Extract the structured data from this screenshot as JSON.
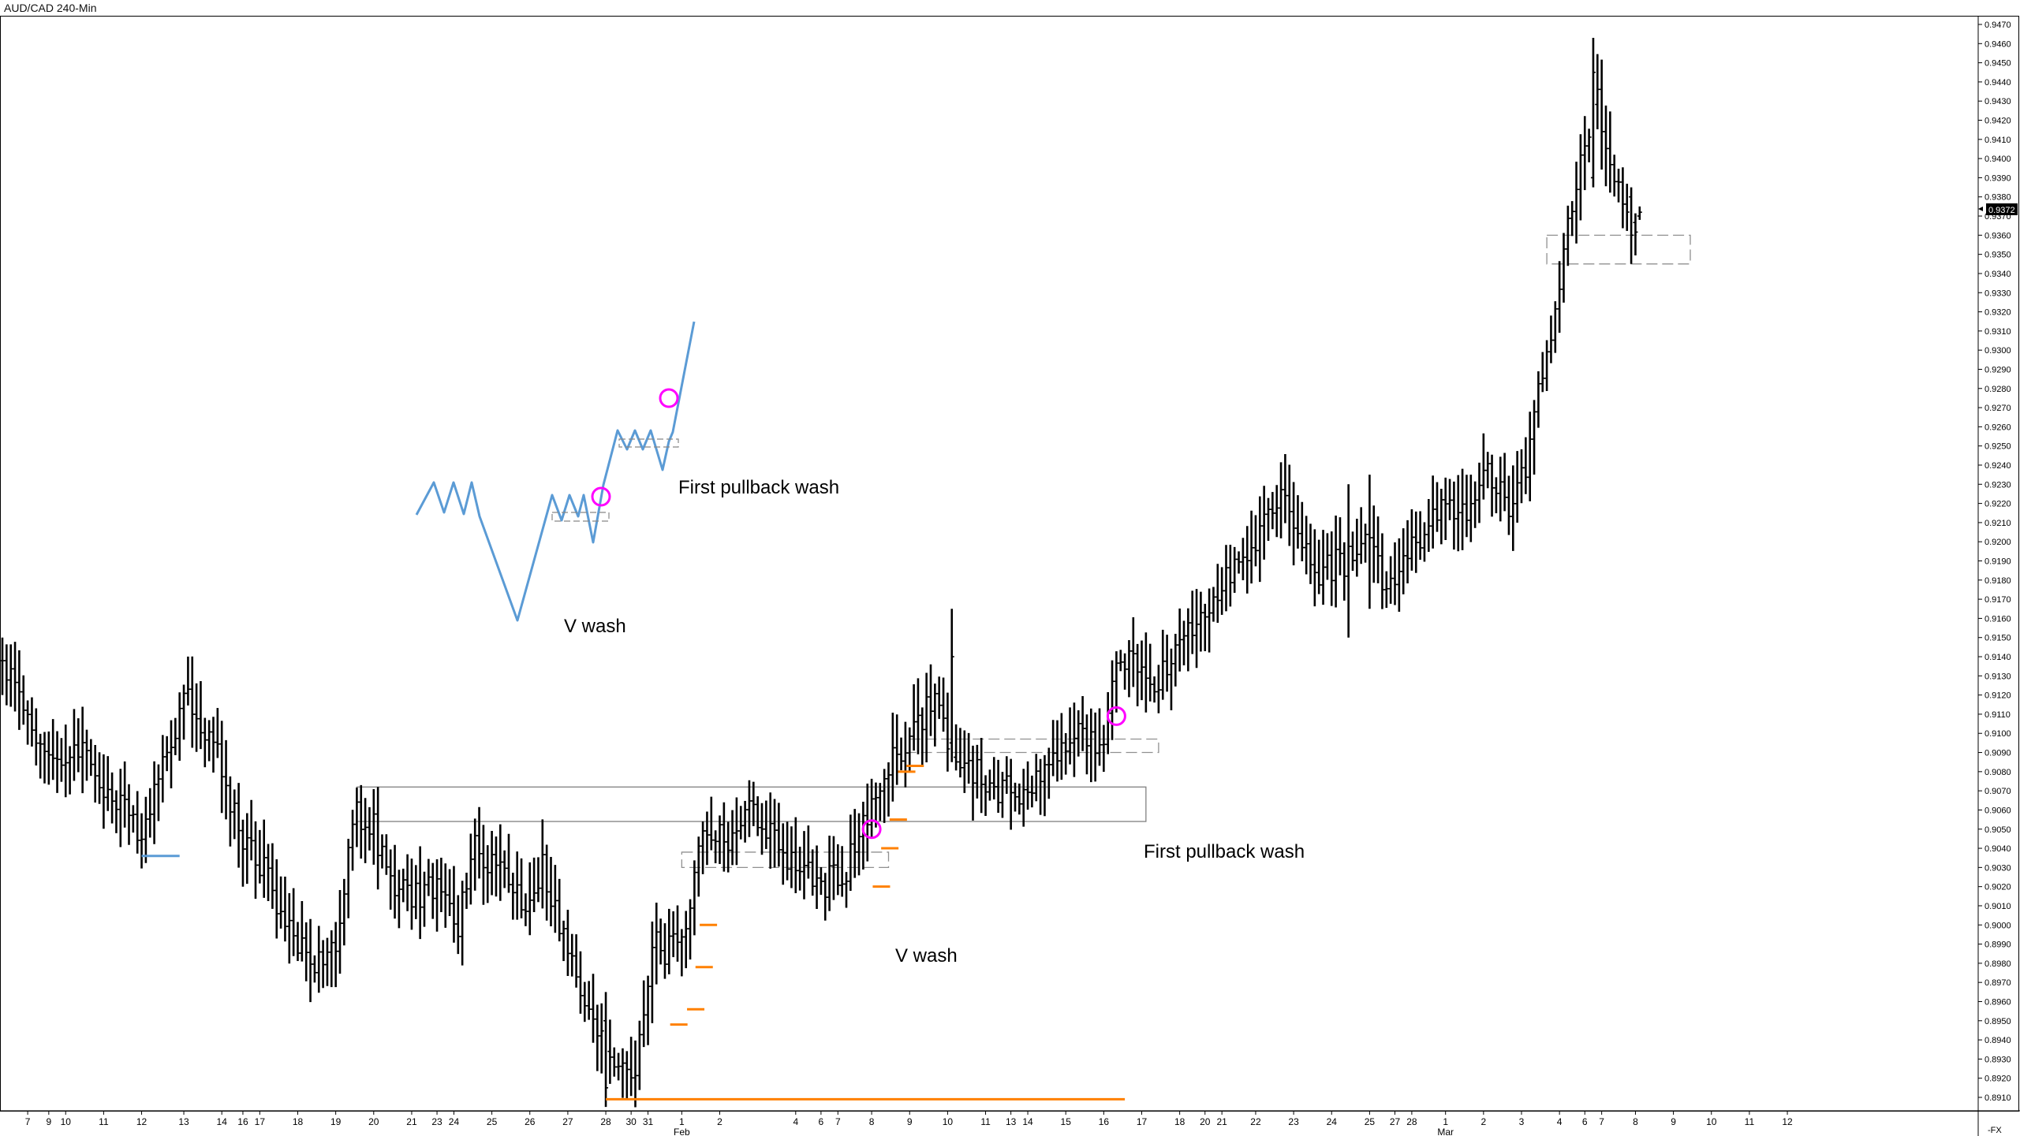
{
  "window": {
    "title": "AUD/CAD 240-Min"
  },
  "price_tag": "0.9372",
  "axis_footer": "-FX",
  "colors": {
    "bars": "#000000",
    "orange": "#ff8000",
    "magenta": "#ff00ff",
    "blue_sketch": "#5b9bd5",
    "zone_solid": "#808080",
    "zone_dashed": "#909090"
  },
  "annotations": {
    "v_wash_top": "V wash",
    "first_pullback_top": "First pullback wash",
    "v_wash_bottom": "V wash",
    "first_pullback_bottom": "First pullback wash"
  },
  "chart_data": {
    "type": "ohlc",
    "title": "AUD/CAD 240-Min",
    "y_axis": {
      "range": [
        0.89,
        0.947
      ],
      "ticks": [
        "0.8910",
        "0.8920",
        "0.8930",
        "0.8940",
        "0.8950",
        "0.8960",
        "0.8970",
        "0.8980",
        "0.8990",
        "0.9000",
        "0.9010",
        "0.9020",
        "0.9030",
        "0.9040",
        "0.9050",
        "0.9060",
        "0.9070",
        "0.9080",
        "0.9090",
        "0.9100",
        "0.9110",
        "0.9120",
        "0.9130",
        "0.9140",
        "0.9150",
        "0.9160",
        "0.9170",
        "0.9180",
        "0.9190",
        "0.9200",
        "0.9210",
        "0.9220",
        "0.9230",
        "0.9240",
        "0.9250",
        "0.9260",
        "0.9270",
        "0.9280",
        "0.9290",
        "0.9300",
        "0.9310",
        "0.9320",
        "0.9330",
        "0.9340",
        "0.9350",
        "0.9360",
        "0.9370",
        "0.9380",
        "0.9390",
        "0.9400",
        "0.9410",
        "0.9420",
        "0.9430",
        "0.9440",
        "0.9450",
        "0.9460",
        "0.9470"
      ]
    },
    "x_axis": {
      "ticks": [
        {
          "label": "7",
          "i": 6
        },
        {
          "label": "9",
          "i": 11
        },
        {
          "label": "10",
          "i": 15
        },
        {
          "label": "11",
          "i": 24
        },
        {
          "label": "12",
          "i": 33
        },
        {
          "label": "13",
          "i": 43
        },
        {
          "label": "14",
          "i": 52
        },
        {
          "label": "16",
          "i": 57
        },
        {
          "label": "17",
          "i": 61
        },
        {
          "label": "18",
          "i": 70
        },
        {
          "label": "19",
          "i": 79
        },
        {
          "label": "20",
          "i": 88
        },
        {
          "label": "21",
          "i": 97
        },
        {
          "label": "23",
          "i": 103
        },
        {
          "label": "24",
          "i": 107
        },
        {
          "label": "25",
          "i": 116
        },
        {
          "label": "26",
          "i": 125
        },
        {
          "label": "27",
          "i": 134
        },
        {
          "label": "28",
          "i": 143
        },
        {
          "label": "30",
          "i": 149
        },
        {
          "label": "31",
          "i": 153
        },
        {
          "label": "1",
          "i": 161
        },
        {
          "label": "2",
          "i": 170
        },
        {
          "label": "4",
          "i": 188
        },
        {
          "label": "6",
          "i": 194
        },
        {
          "label": "7",
          "i": 198
        },
        {
          "label": "8",
          "i": 206
        },
        {
          "label": "9",
          "i": 215
        },
        {
          "label": "10",
          "i": 224
        },
        {
          "label": "11",
          "i": 233
        },
        {
          "label": "13",
          "i": 239
        },
        {
          "label": "14",
          "i": 243
        },
        {
          "label": "15",
          "i": 252
        },
        {
          "label": "16",
          "i": 261
        },
        {
          "label": "17",
          "i": 270
        },
        {
          "label": "18",
          "i": 279
        },
        {
          "label": "20",
          "i": 285
        },
        {
          "label": "21",
          "i": 289
        },
        {
          "label": "22",
          "i": 297
        },
        {
          "label": "23",
          "i": 306
        },
        {
          "label": "24",
          "i": 315
        },
        {
          "label": "25",
          "i": 324
        },
        {
          "label": "27",
          "i": 330
        },
        {
          "label": "28",
          "i": 334
        },
        {
          "label": "1",
          "i": 342
        },
        {
          "label": "2",
          "i": 351
        },
        {
          "label": "3",
          "i": 360
        },
        {
          "label": "4",
          "i": 369
        },
        {
          "label": "6",
          "i": 375
        },
        {
          "label": "7",
          "i": 379
        },
        {
          "label": "8",
          "i": 387
        },
        {
          "label": "9",
          "i": 396
        },
        {
          "label": "10",
          "i": 405
        },
        {
          "label": "11",
          "i": 414
        },
        {
          "label": "12",
          "i": 423
        }
      ],
      "month_labels": [
        {
          "label": "Feb",
          "i": 161
        },
        {
          "label": "Mar",
          "i": 342
        }
      ]
    },
    "anchors": [
      [
        0,
        0.914
      ],
      [
        8,
        0.91
      ],
      [
        12,
        0.908
      ],
      [
        18,
        0.9095
      ],
      [
        26,
        0.9065
      ],
      [
        33,
        0.905
      ],
      [
        40,
        0.91
      ],
      [
        44,
        0.912
      ],
      [
        50,
        0.9095
      ],
      [
        56,
        0.905
      ],
      [
        62,
        0.903
      ],
      [
        68,
        0.8995
      ],
      [
        74,
        0.898
      ],
      [
        80,
        0.8995
      ],
      [
        83,
        0.906
      ],
      [
        88,
        0.905
      ],
      [
        92,
        0.902
      ],
      [
        96,
        0.9015
      ],
      [
        103,
        0.902
      ],
      [
        108,
        0.9
      ],
      [
        112,
        0.904
      ],
      [
        118,
        0.903
      ],
      [
        124,
        0.901
      ],
      [
        128,
        0.903
      ],
      [
        134,
        0.8985
      ],
      [
        140,
        0.8945
      ],
      [
        145,
        0.893
      ],
      [
        150,
        0.8925
      ],
      [
        154,
        0.899
      ],
      [
        157,
        0.8985
      ],
      [
        162,
        0.9
      ],
      [
        166,
        0.905
      ],
      [
        172,
        0.9045
      ],
      [
        178,
        0.906
      ],
      [
        184,
        0.904
      ],
      [
        188,
        0.903
      ],
      [
        194,
        0.902
      ],
      [
        200,
        0.903
      ],
      [
        206,
        0.906
      ],
      [
        210,
        0.9085
      ],
      [
        216,
        0.91
      ],
      [
        221,
        0.912
      ],
      [
        226,
        0.908
      ],
      [
        230,
        0.908
      ],
      [
        236,
        0.907
      ],
      [
        242,
        0.907
      ],
      [
        248,
        0.908
      ],
      [
        254,
        0.9105
      ],
      [
        260,
        0.909
      ],
      [
        264,
        0.913
      ],
      [
        268,
        0.9145
      ],
      [
        272,
        0.912
      ],
      [
        278,
        0.914
      ],
      [
        284,
        0.916
      ],
      [
        290,
        0.9185
      ],
      [
        296,
        0.919
      ],
      [
        302,
        0.9225
      ],
      [
        307,
        0.9205
      ],
      [
        312,
        0.9185
      ],
      [
        318,
        0.919
      ],
      [
        324,
        0.92
      ],
      [
        328,
        0.9175
      ],
      [
        334,
        0.9195
      ],
      [
        340,
        0.9215
      ],
      [
        346,
        0.9215
      ],
      [
        352,
        0.9235
      ],
      [
        358,
        0.9215
      ],
      [
        362,
        0.925
      ],
      [
        366,
        0.93
      ],
      [
        370,
        0.935
      ],
      [
        374,
        0.94
      ],
      [
        378,
        0.943
      ],
      [
        382,
        0.9395
      ],
      [
        386,
        0.936
      ],
      [
        388,
        0.9368
      ]
    ],
    "key_bars": [
      {
        "i": 0,
        "high": 0.915,
        "low": 0.912
      },
      {
        "i": 143,
        "high": 0.8965,
        "low": 0.8905,
        "open": 0.895,
        "close": 0.8915
      },
      {
        "i": 225,
        "high": 0.9165,
        "low": 0.9085,
        "open": 0.9095,
        "close": 0.914
      },
      {
        "i": 319,
        "high": 0.923,
        "low": 0.915
      },
      {
        "i": 324,
        "high": 0.9235,
        "low": 0.9165
      },
      {
        "i": 377,
        "high": 0.9463,
        "low": 0.9385,
        "open": 0.939,
        "close": 0.9445
      },
      {
        "i": 386,
        "high": 0.9385,
        "low": 0.9345,
        "open": 0.938,
        "close": 0.936
      },
      {
        "i": 388,
        "high": 0.9375,
        "low": 0.9368,
        "open": 0.937,
        "close": 0.9372
      }
    ],
    "last_price": 0.9372,
    "horizontal_lines": [
      {
        "color": "orange",
        "y": 0.8909,
        "i_from": 143,
        "i_to": 266
      },
      {
        "color": "blue",
        "y": 0.9036,
        "i_from": 33,
        "i_to": 42
      }
    ],
    "orange_marks": [
      {
        "i": 159,
        "y": 0.8948
      },
      {
        "i": 163,
        "y": 0.8956
      },
      {
        "i": 165,
        "y": 0.8978
      },
      {
        "i": 166,
        "y": 0.9
      },
      {
        "i": 207,
        "y": 0.902
      },
      {
        "i": 209,
        "y": 0.904
      },
      {
        "i": 211,
        "y": 0.9055
      },
      {
        "i": 213,
        "y": 0.908
      },
      {
        "i": 215,
        "y": 0.9083
      }
    ],
    "zones": [
      {
        "style": "solid",
        "y_top": 0.9072,
        "y_bot": 0.9054,
        "i_from": 84,
        "i_to": 271
      },
      {
        "style": "dashed",
        "y_top": 0.9097,
        "y_bot": 0.909,
        "i_from": 215,
        "i_to": 274
      },
      {
        "style": "dashed",
        "y_top": 0.9038,
        "y_bot": 0.903,
        "i_from": 161,
        "i_to": 210
      },
      {
        "style": "dashed",
        "y_top": 0.936,
        "y_bot": 0.9345,
        "i_from": 366,
        "i_to": 400
      }
    ],
    "circles": [
      {
        "i": 206,
        "y": 0.905
      },
      {
        "i": 264,
        "y": 0.9109
      }
    ]
  }
}
